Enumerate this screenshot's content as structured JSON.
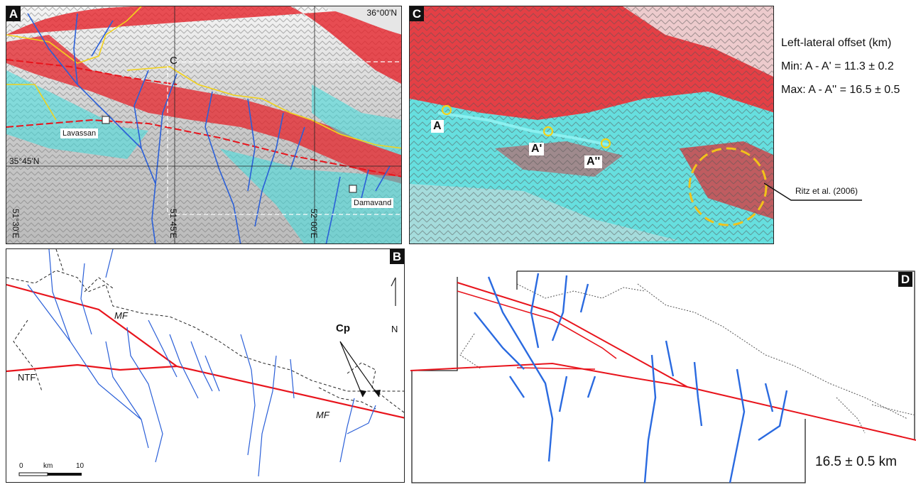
{
  "panels": {
    "a": {
      "label": "A"
    },
    "b": {
      "label": "B"
    },
    "c": {
      "label": "C"
    },
    "d": {
      "label": "D"
    }
  },
  "map_a": {
    "lat_top": "36°00'N",
    "lat_mid": "35°45'N",
    "lon_1": "51°30'E",
    "lon_2": "51°45'E",
    "lon_3": "52°00'E",
    "inset_label": "C",
    "towns": [
      {
        "name": "Lavassan"
      },
      {
        "name": "Damavand"
      }
    ]
  },
  "map_c": {
    "points": [
      {
        "name": "A"
      },
      {
        "name": "A'"
      },
      {
        "name": "A''"
      }
    ],
    "reference": "Ritz et al. (2006)"
  },
  "legend": {
    "title": "Left-lateral offset (km)",
    "min": "Min: A - A' = 11.3 ± 0.2",
    "max": "Max: A - A'' = 16.5 ± 0.5"
  },
  "map_b": {
    "labels": {
      "mf1": "MF",
      "mf2": "MF",
      "ntf": "NTF",
      "cp": "Cp",
      "north": "N"
    },
    "scale": {
      "zero": "0",
      "unit": "km",
      "max": "10"
    }
  },
  "map_d": {
    "offset_label": "16.5 ± 0.5 km"
  },
  "colors": {
    "fault": "#e8141c",
    "river": "#2a5fd8",
    "catchment": "#222222",
    "highlight": "#f2d21a",
    "relief_red": "#e5232a",
    "relief_cyan": "#3fe0e0"
  }
}
